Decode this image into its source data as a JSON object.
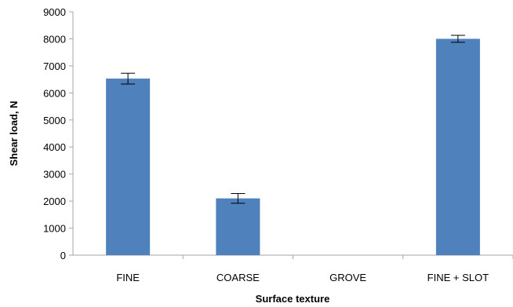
{
  "chart_data": {
    "type": "bar",
    "xlabel": "Surface texture",
    "ylabel": "Shear load, N",
    "categories": [
      "FINE",
      "COARSE",
      "GROVE",
      "FINE + SLOT"
    ],
    "values": [
      6530,
      2100,
      0,
      8000
    ],
    "error": [
      200,
      180,
      0,
      130
    ],
    "ylim": [
      0,
      9000
    ],
    "yticks": [
      "0",
      "1000",
      "2000",
      "3000",
      "4000",
      "5000",
      "6000",
      "7000",
      "8000",
      "9000"
    ],
    "grid": false,
    "legend": "none",
    "bar_color": "#4f81bd",
    "axis_color": "#a6a6a6"
  }
}
